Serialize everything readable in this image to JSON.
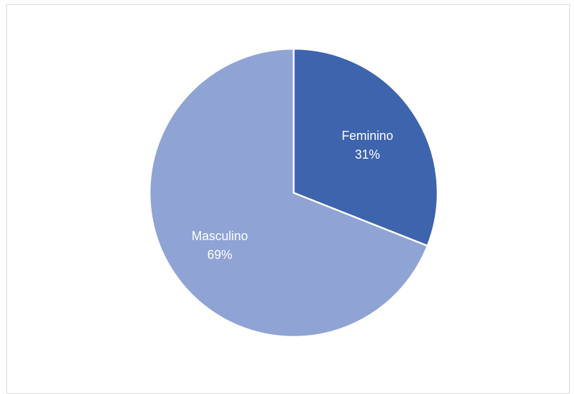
{
  "chart_data": {
    "type": "pie",
    "categories": [
      "Feminino",
      "Masculino"
    ],
    "values": [
      31,
      69
    ],
    "labels": [
      "31%",
      "69%"
    ],
    "colors": [
      "#3d64ad",
      "#8fa3d4"
    ],
    "slice_border_color": "#ffffff",
    "frame_border_color": "#d9d9d9",
    "start_angle": "12 o'clock",
    "direction": "clockwise",
    "legend": "none",
    "data_labels": "inside slices, category name and percentage"
  }
}
